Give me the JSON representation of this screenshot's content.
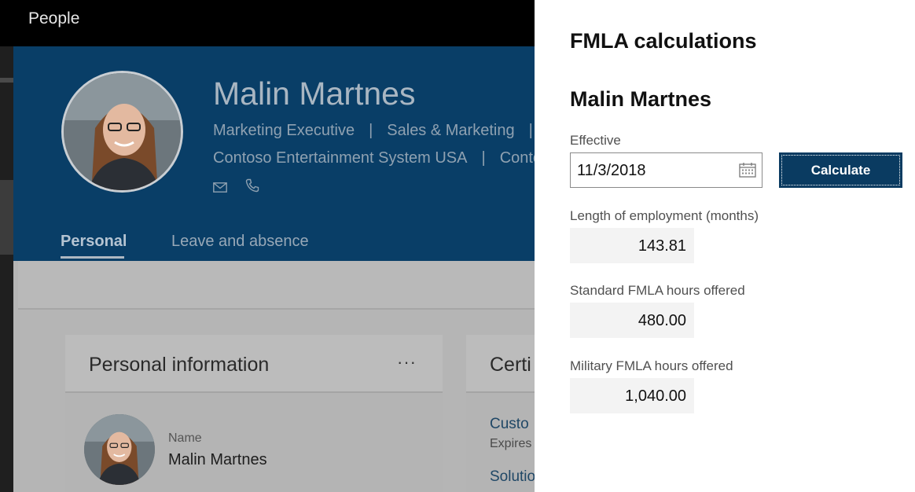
{
  "app": {
    "title": "People"
  },
  "profile": {
    "name": "Malin Martnes",
    "title": "Marketing Executive",
    "department": "Sales & Marketing",
    "company": "Contoso Entertainment System USA",
    "company_short": "Conto",
    "separator": "|"
  },
  "tabs": [
    {
      "label": "Personal",
      "selected": true
    },
    {
      "label": "Leave and absence",
      "selected": false
    }
  ],
  "personal_card": {
    "title": "Personal information",
    "more": "···",
    "name_label": "Name",
    "name_value": "Malin Martnes"
  },
  "cert_card": {
    "title": "Certi",
    "link1": "Custo",
    "sub": "Expires",
    "link2": "Solutio"
  },
  "panel": {
    "title": "FMLA calculations",
    "subtitle": "Malin Martnes",
    "effective_label": "Effective",
    "effective_value": "11/3/2018",
    "calculate_label": "Calculate",
    "length_label": "Length of employment (months)",
    "length_value": "143.81",
    "standard_label": "Standard FMLA hours offered",
    "standard_value": "480.00",
    "military_label": "Military FMLA hours offered",
    "military_value": "1,040.00"
  },
  "colors": {
    "hero": "#093e67",
    "button": "#0a3b61",
    "topbar": "#000000",
    "value_box": "#f3f3f3"
  },
  "icons": [
    "mail-icon",
    "phone-icon",
    "calendar-icon",
    "more-icon"
  ]
}
